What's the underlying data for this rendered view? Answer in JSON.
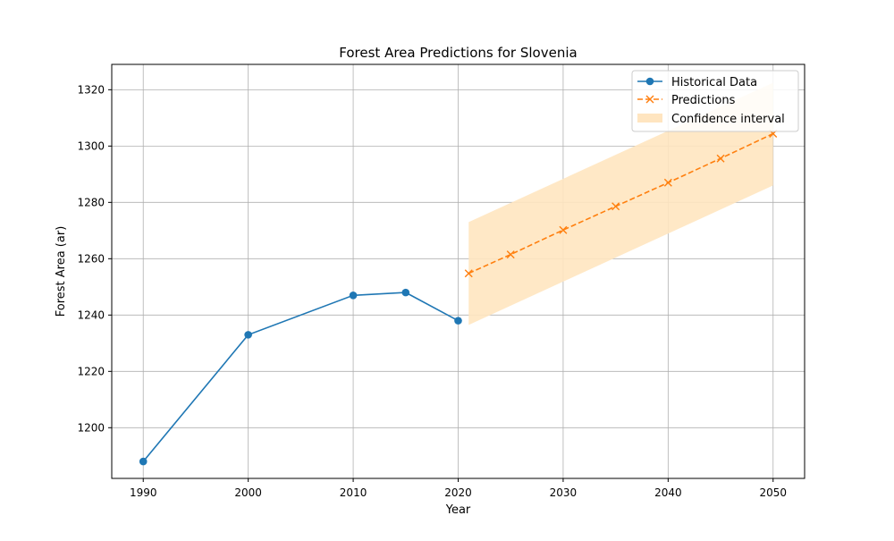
{
  "chart_data": {
    "type": "line",
    "title": "Forest Area Predictions for Slovenia",
    "xlabel": "Year",
    "ylabel": "Forest Area (ar)",
    "xlim": [
      1987,
      2053
    ],
    "ylim": [
      1182,
      1329
    ],
    "xticks": [
      1990,
      2000,
      2010,
      2020,
      2030,
      2040,
      2050
    ],
    "yticks": [
      1200,
      1220,
      1240,
      1260,
      1280,
      1300,
      1320
    ],
    "grid": true,
    "legend_position": "top-right",
    "series": [
      {
        "name": "Historical Data",
        "style": "solid",
        "marker": "circle",
        "color": "#1f77b4",
        "x": [
          1990,
          2000,
          2010,
          2015,
          2020
        ],
        "y": [
          1188,
          1233,
          1247,
          1248,
          1238
        ]
      },
      {
        "name": "Predictions",
        "style": "dashed",
        "marker": "x",
        "color": "#ff7f0e",
        "x": [
          2021,
          2025,
          2030,
          2035,
          2040,
          2045,
          2050
        ],
        "y": [
          1254.8,
          1261.5,
          1270.2,
          1278.6,
          1287.0,
          1295.6,
          1304.4
        ]
      }
    ],
    "confidence_interval": {
      "name": "Confidence interval",
      "color": "#ffe5c0",
      "x": [
        2021,
        2050
      ],
      "lower": [
        1236.5,
        1286.0
      ],
      "upper": [
        1273.0,
        1322.5
      ]
    }
  }
}
